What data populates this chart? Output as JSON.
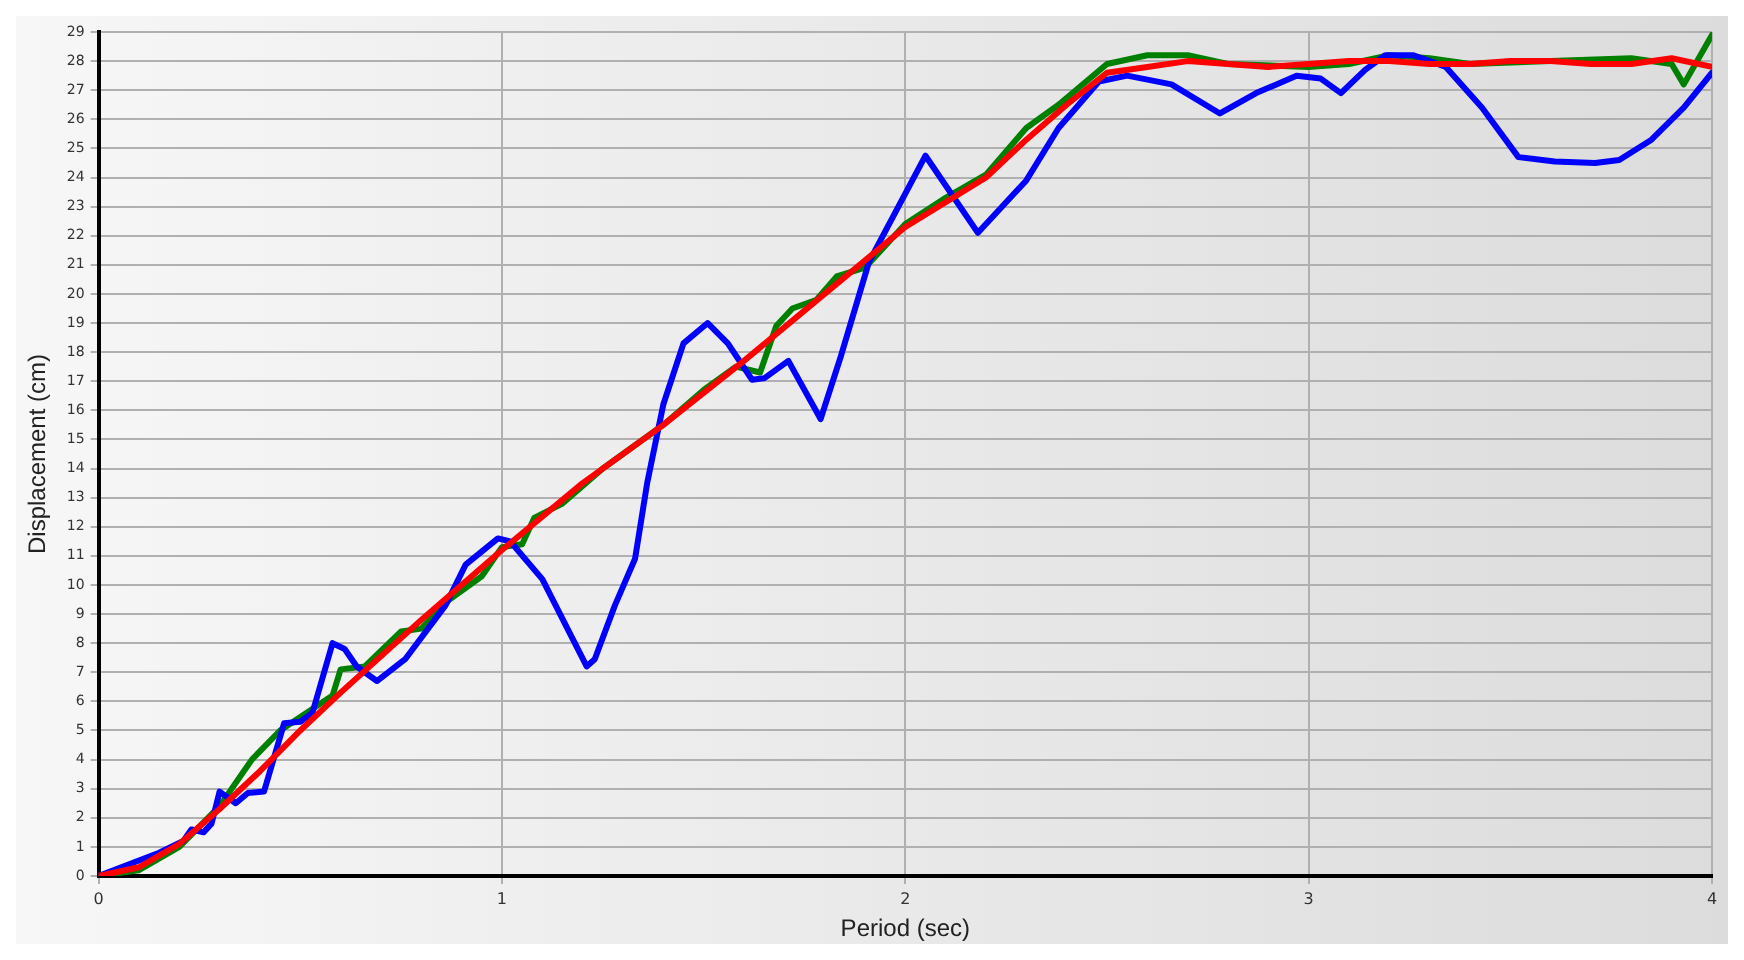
{
  "chart_data": {
    "type": "line",
    "xlabel": "Period (sec)",
    "ylabel": "Displacement (cm)",
    "xlim": [
      0,
      4
    ],
    "xticks": [
      0,
      1,
      2,
      3,
      4
    ],
    "ylim": [
      0,
      29
    ],
    "yticks": [
      0,
      1,
      2,
      3,
      4,
      5,
      6,
      7,
      8,
      9,
      10,
      11,
      12,
      13,
      14,
      15,
      16,
      17,
      18,
      19,
      20,
      21,
      22,
      23,
      24,
      25,
      26,
      27,
      28,
      29
    ],
    "grid": true,
    "legend": false,
    "marker": "none",
    "line_style": "solid",
    "series": [
      {
        "color": "#ff0000",
        "x": [
          0,
          0.1,
          0.2,
          0.3,
          0.4,
          0.5,
          0.6,
          0.8,
          1.0,
          1.2,
          1.4,
          1.6,
          1.8,
          2.0,
          2.2,
          2.3,
          2.4,
          2.5,
          2.6,
          2.7,
          2.8,
          2.9,
          3.0,
          3.1,
          3.2,
          3.3,
          3.4,
          3.5,
          3.6,
          3.7,
          3.8,
          3.9,
          4.0
        ],
        "values": [
          0,
          0.3,
          1.1,
          2.3,
          3.6,
          5.0,
          6.3,
          8.8,
          11.2,
          13.5,
          15.5,
          17.7,
          20.0,
          22.3,
          24.0,
          25.3,
          26.5,
          27.6,
          27.8,
          28.0,
          27.9,
          27.8,
          27.9,
          28.0,
          28.0,
          27.9,
          27.9,
          28.0,
          28.0,
          27.9,
          27.9,
          28.1,
          27.8
        ]
      },
      {
        "color": "#0000ff",
        "x": [
          0,
          0.15,
          0.21,
          0.23,
          0.26,
          0.28,
          0.3,
          0.34,
          0.37,
          0.41,
          0.46,
          0.5,
          0.53,
          0.58,
          0.61,
          0.64,
          0.69,
          0.76,
          0.86,
          0.91,
          0.99,
          1.02,
          1.1,
          1.21,
          1.23,
          1.28,
          1.33,
          1.36,
          1.4,
          1.45,
          1.51,
          1.56,
          1.62,
          1.65,
          1.71,
          1.79,
          1.84,
          1.91,
          2.05,
          2.18,
          2.3,
          2.38,
          2.48,
          2.55,
          2.66,
          2.78,
          2.87,
          2.97,
          3.03,
          3.08,
          3.14,
          3.19,
          3.26,
          3.34,
          3.43,
          3.52,
          3.61,
          3.71,
          3.77,
          3.85,
          3.93,
          4.0
        ],
        "values": [
          0,
          0.8,
          1.2,
          1.6,
          1.5,
          1.8,
          2.9,
          2.5,
          2.85,
          2.9,
          5.25,
          5.3,
          5.6,
          8.0,
          7.8,
          7.2,
          6.7,
          7.45,
          9.3,
          10.7,
          11.6,
          11.5,
          10.2,
          7.2,
          7.45,
          9.3,
          10.9,
          13.5,
          16.2,
          18.3,
          19.0,
          18.3,
          17.05,
          17.1,
          17.7,
          15.7,
          17.85,
          21.1,
          24.75,
          22.1,
          23.9,
          25.7,
          27.3,
          27.5,
          27.2,
          26.2,
          26.9,
          27.5,
          27.4,
          26.9,
          27.7,
          28.2,
          28.2,
          27.8,
          26.4,
          24.7,
          24.55,
          24.5,
          24.6,
          25.3,
          26.4,
          27.6
        ]
      },
      {
        "color": "#008000",
        "x": [
          0,
          0.1,
          0.2,
          0.3,
          0.38,
          0.45,
          0.58,
          0.6,
          0.66,
          0.75,
          0.8,
          0.87,
          0.95,
          1.0,
          1.05,
          1.08,
          1.15,
          1.25,
          1.3,
          1.4,
          1.5,
          1.58,
          1.64,
          1.68,
          1.72,
          1.78,
          1.83,
          1.9,
          2.0,
          2.1,
          2.2,
          2.3,
          2.38,
          2.5,
          2.6,
          2.7,
          2.8,
          3.0,
          3.1,
          3.2,
          3.3,
          3.4,
          3.6,
          3.8,
          3.9,
          3.93,
          4.0
        ],
        "values": [
          0,
          0.2,
          1.0,
          2.4,
          4.0,
          5.0,
          6.2,
          7.1,
          7.2,
          8.4,
          8.5,
          9.5,
          10.3,
          11.3,
          11.4,
          12.3,
          12.8,
          14.0,
          14.5,
          15.5,
          16.7,
          17.5,
          17.3,
          18.9,
          19.5,
          19.8,
          20.6,
          20.9,
          22.4,
          23.3,
          24.1,
          25.7,
          26.5,
          27.9,
          28.2,
          28.2,
          27.9,
          27.8,
          27.9,
          28.2,
          28.1,
          27.9,
          28.0,
          28.1,
          27.9,
          27.2,
          28.9
        ]
      }
    ]
  }
}
